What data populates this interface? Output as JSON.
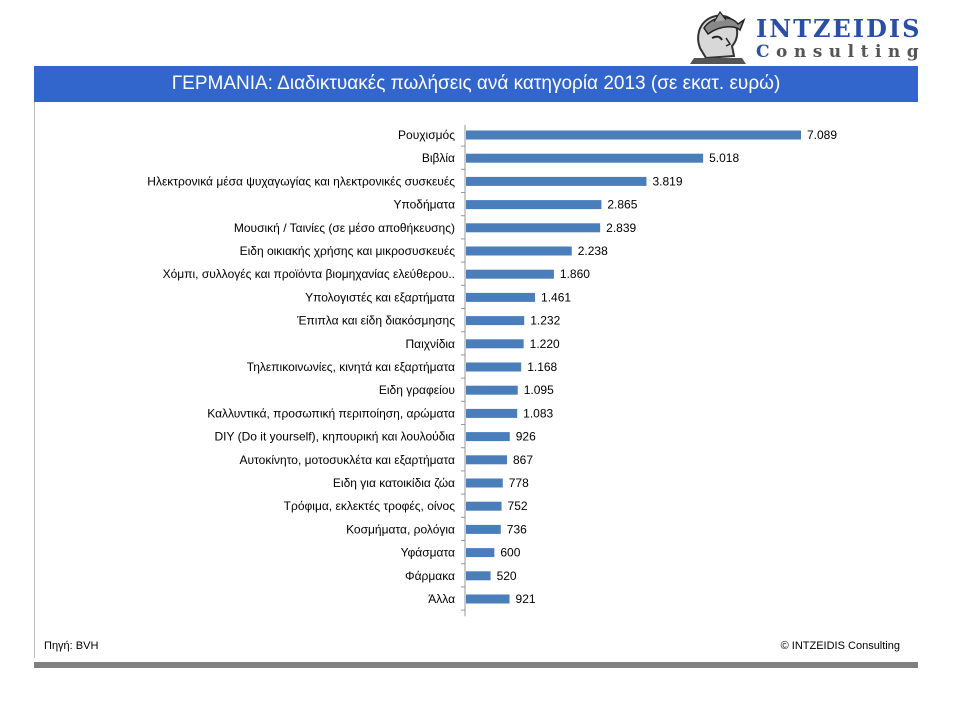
{
  "header": {
    "logo_name": "INTZEIDIS",
    "logo_sub_initial": "C",
    "logo_sub_rest": "onsulting",
    "logo_figure_icon": "helmeted-head-icon",
    "title": "ΓΕΡΜΑΝΙΑ: Διαδικτυακές πωλήσεις ανά κατηγορία 2013 (σε εκατ. ευρώ)"
  },
  "footer": {
    "source": "Πηγή: BVH",
    "copyright": "© INTZEIDIS Consulting"
  },
  "colors": {
    "title_bar": "#3366cc",
    "bar": "#4a7ebb",
    "logo_blue": "#2b4fa6"
  },
  "chart_data": {
    "type": "bar",
    "orientation": "horizontal",
    "title": "ΓΕΡΜΑΝΙΑ: Διαδικτυακές πωλήσεις ανά κατηγορία 2013 (σε εκατ. ευρώ)",
    "categories": [
      "Ρουχισμός",
      "Βιβλία",
      "Ηλεκτρονικά μέσα ψυχαγωγίας και ηλεκτρονικές συσκευές",
      "Υποδήματα",
      "Μουσική / Ταινίες (σε μέσο αποθήκευσης)",
      "Ειδη οικιακής χρήσης και μικροσυσκευές",
      "Χόμπι, συλλογές και προϊόντα βιομηχανίας ελεύθερου..",
      "Υπολογιστές και εξαρτήματα",
      "Έπιπλα και είδη διακόσμησης",
      "Παιχνίδια",
      "Τηλεπικοινωνίες, κινητά και εξαρτήματα",
      "Ειδη γραφείου",
      "Καλλυντικά, προσωπική περιποίηση, αρώματα",
      "DIY (Do it yourself), κηπουρική και λουλούδια",
      "Αυτοκίνητο, μοτοσυκλέτα και εξαρτήματα",
      "Ειδη για κατοικίδια ζώα",
      "Τρόφιμα, εκλεκτές τροφές, οίνος",
      "Κοσμήματα, ρολόγια",
      "Υφάσματα",
      "Φάρμακα",
      "Άλλα"
    ],
    "values": [
      7089,
      5018,
      3819,
      2865,
      2839,
      2238,
      1860,
      1461,
      1232,
      1220,
      1168,
      1095,
      1083,
      926,
      867,
      778,
      752,
      736,
      600,
      520,
      921
    ],
    "value_labels": [
      "7.089",
      "5.018",
      "3.819",
      "2.865",
      "2.839",
      "2.238",
      "1.860",
      "1.461",
      "1.232",
      "1.220",
      "1.168",
      "1.095",
      "1.083",
      "926",
      "867",
      "778",
      "752",
      "736",
      "600",
      "520",
      "921"
    ],
    "xlabel": "",
    "ylabel": "",
    "xlim": [
      0,
      7089
    ],
    "grid": false,
    "legend": "none",
    "data_labels": true
  }
}
